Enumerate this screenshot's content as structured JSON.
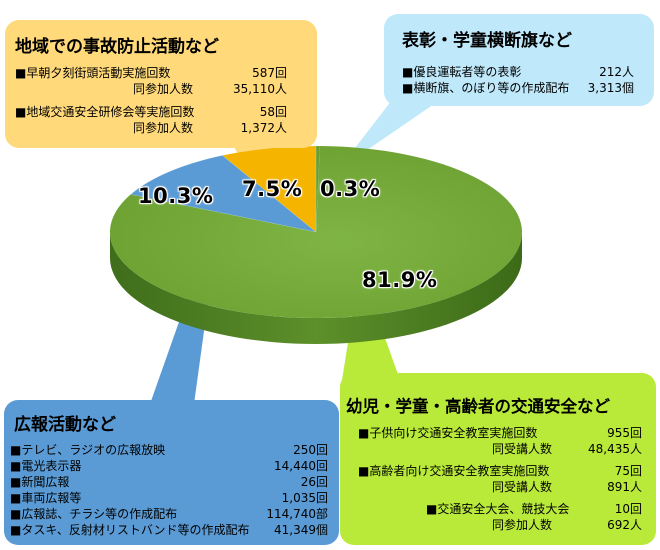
{
  "chart_data": {
    "type": "pie",
    "categories": [
      "幼児・学童・高齢者の交通安全など",
      "広報活動など",
      "地域での事故防止活動など",
      "表彰・学童横断旗など"
    ],
    "values": [
      81.9,
      10.3,
      7.5,
      0.3
    ],
    "labels": [
      "81.9%",
      "10.3%",
      "7.5%",
      "0.3%"
    ],
    "colors": [
      "#77ab3a",
      "#5b9bd5",
      "#f5b400",
      "#6a9e2f"
    ]
  },
  "panels": {
    "local": {
      "title": "地域での事故防止活動など",
      "color": "#ffd97a",
      "rows": [
        {
          "label": "■早朝夕刻街頭活動実施回数",
          "value": "587回"
        },
        {
          "label": "同参加人数",
          "value": "35,110人"
        },
        {
          "label": "■地域交通安全研修会等実施回数",
          "value": "58回"
        },
        {
          "label": "同参加人数",
          "value": "1,372人"
        }
      ]
    },
    "award": {
      "title": "表彰・学童横断旗など",
      "color": "#bfe9fb",
      "rows": [
        {
          "label": "■優良運転者等の表彰",
          "value": "212人"
        },
        {
          "label": "■横断旗、のぼり等の作成配布",
          "value": "3,313個"
        }
      ]
    },
    "pr": {
      "title": "広報活動など",
      "color": "#5b9bd5",
      "rows": [
        {
          "label": "■テレビ、ラジオの広報放映",
          "value": "250回"
        },
        {
          "label": "■電光表示器",
          "value": "14,440回"
        },
        {
          "label": "■新聞広報",
          "value": "26回"
        },
        {
          "label": "■車両広報等",
          "value": "1,035回"
        },
        {
          "label": "■広報誌、チラシ等の作成配布",
          "value": "114,740部"
        },
        {
          "label": "■タスキ、反射材リストバンド等の作成配布",
          "value": "41,349個"
        }
      ]
    },
    "safety": {
      "title": "幼児・学童・高齢者の交通安全など",
      "color": "#b9ea3a",
      "rows": [
        {
          "label": "■子供向け交通安全教室実施回数",
          "value": "955回"
        },
        {
          "label": "同受講人数",
          "value": "48,435人"
        },
        {
          "label": "■高齢者向け交通安全教室実施回数",
          "value": "75回"
        },
        {
          "label": "同受講人数",
          "value": "891人"
        },
        {
          "label": "■交通安全大会、競技大会",
          "value": "10回"
        },
        {
          "label": "同参加人数",
          "value": "692人"
        }
      ]
    }
  }
}
